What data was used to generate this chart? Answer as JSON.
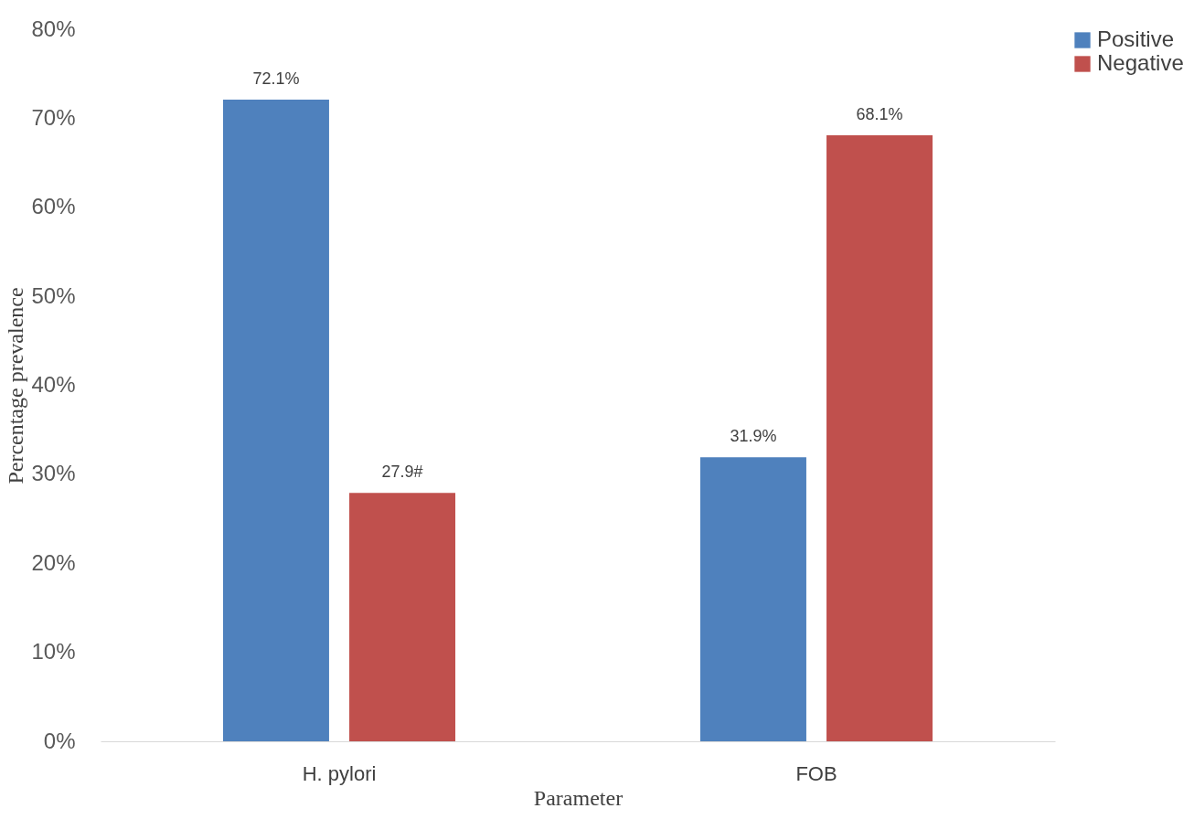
{
  "chart_data": {
    "type": "bar",
    "xlabel": "Parameter",
    "ylabel": "Percentage prevalence",
    "categories": [
      "H. pylori",
      "FOB"
    ],
    "series": [
      {
        "name": "Positive",
        "color": "#4f81bd",
        "values": [
          72.1,
          31.9
        ],
        "value_labels": [
          "72.1%",
          "31.9%"
        ]
      },
      {
        "name": "Negative",
        "color": "#c0504d",
        "values": [
          27.9,
          68.1
        ],
        "value_labels": [
          "27.9#",
          "68.1%"
        ]
      }
    ],
    "ylim": [
      0,
      80
    ],
    "yticks": [
      {
        "value": 0,
        "label": "0%"
      },
      {
        "value": 10,
        "label": "10%"
      },
      {
        "value": 20,
        "label": "20%"
      },
      {
        "value": 30,
        "label": "30%"
      },
      {
        "value": 40,
        "label": "40%"
      },
      {
        "value": 50,
        "label": "50%"
      },
      {
        "value": 60,
        "label": "60%"
      },
      {
        "value": 70,
        "label": "70%"
      },
      {
        "value": 80,
        "label": "80%"
      }
    ],
    "grid": false,
    "legend": "right"
  }
}
